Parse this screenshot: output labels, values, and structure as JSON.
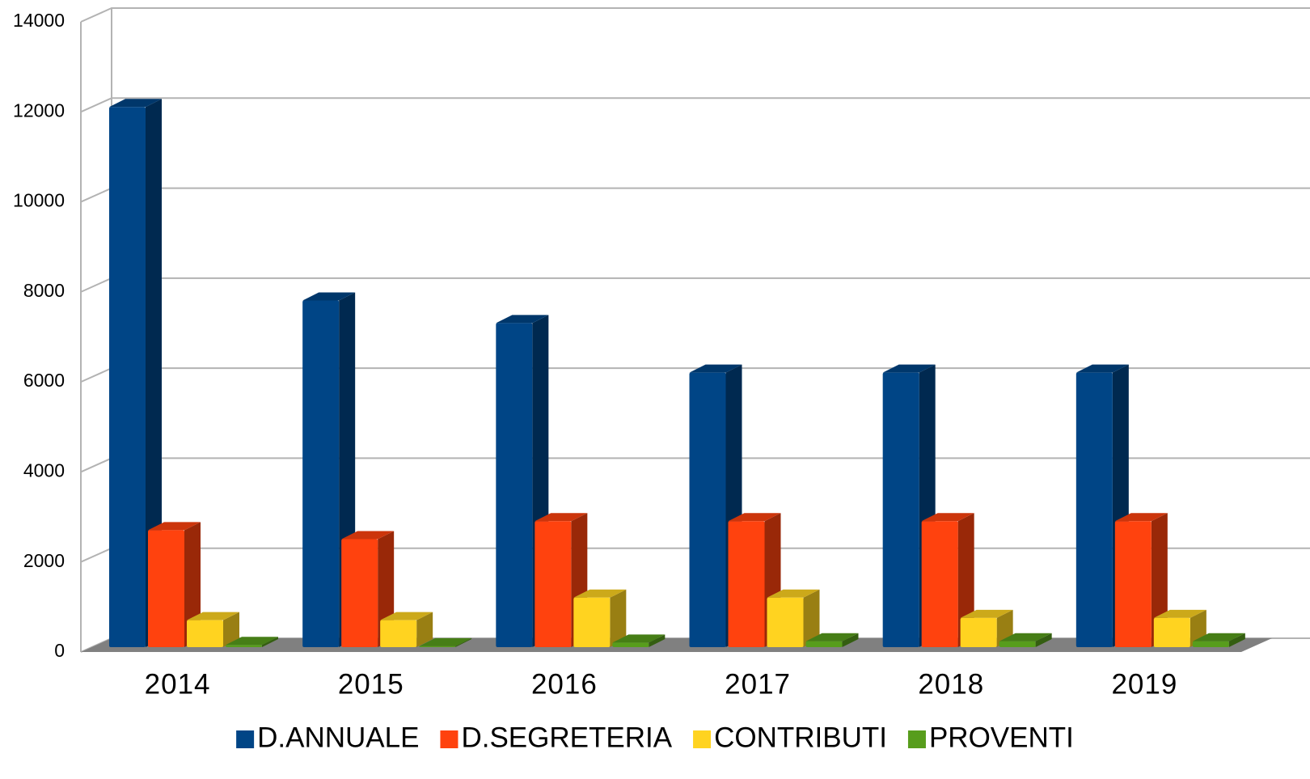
{
  "chart_data": {
    "type": "bar3d",
    "categories": [
      "2014",
      "2015",
      "2016",
      "2017",
      "2018",
      "2019"
    ],
    "series": [
      {
        "name": "D.ANNUALE",
        "color": "#004586",
        "values": [
          12000,
          7700,
          7200,
          6100,
          6100,
          6100
        ]
      },
      {
        "name": "D.SEGRETERIA",
        "color": "#ff420e",
        "values": [
          2600,
          2400,
          2800,
          2800,
          2800,
          2800
        ]
      },
      {
        "name": "CONTRIBUTI",
        "color": "#ffd320",
        "values": [
          600,
          600,
          1100,
          1100,
          650,
          650
        ]
      },
      {
        "name": "PROVENTI",
        "color": "#579d1c",
        "values": [
          50,
          20,
          100,
          130,
          130,
          130
        ]
      }
    ],
    "ylim": [
      0,
      14000
    ],
    "yticks": [
      0,
      2000,
      4000,
      6000,
      8000,
      10000,
      12000,
      14000
    ],
    "grid": true,
    "legend": "bottom"
  }
}
